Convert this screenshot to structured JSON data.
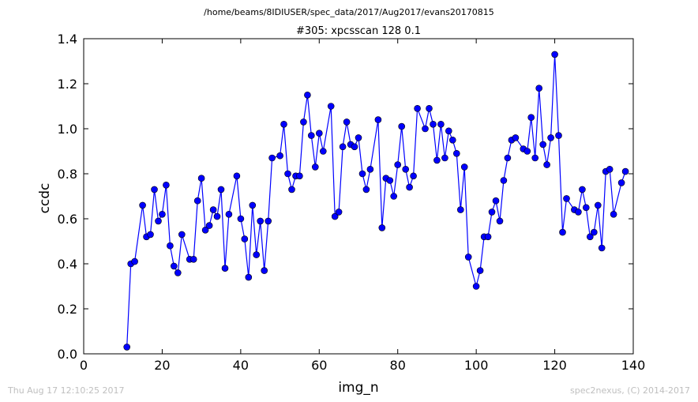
{
  "header": {
    "path": "/home/beams/8IDIUSER/spec_data/2017/Aug2017/evans20170815"
  },
  "footer": {
    "timestamp": "Thu Aug 17 12:10:25 2017",
    "credit": "spec2nexus, (C) 2014-2017"
  },
  "chart_data": {
    "type": "line",
    "title": "#305: xpcsscan 128 0.1",
    "xlabel": "img_n",
    "ylabel": "ccdc",
    "xlim": [
      0,
      140
    ],
    "ylim": [
      0.0,
      1.4
    ],
    "xticks": [
      "0",
      "20",
      "40",
      "60",
      "80",
      "100",
      "120",
      "140"
    ],
    "yticks": [
      "0.0",
      "0.2",
      "0.4",
      "0.6",
      "0.8",
      "1.0",
      "1.2",
      "1.4"
    ],
    "grid": false,
    "series": [
      {
        "color": "#0000ff",
        "marker": "circle",
        "x": [
          11,
          12,
          13,
          15,
          16,
          17,
          18,
          19,
          20,
          21,
          22,
          23,
          24,
          25,
          27,
          28,
          29,
          30,
          31,
          32,
          33,
          34,
          35,
          36,
          37,
          39,
          40,
          41,
          42,
          43,
          44,
          45,
          46,
          47,
          48,
          50,
          51,
          52,
          53,
          54,
          55,
          56,
          57,
          58,
          59,
          60,
          61,
          63,
          64,
          65,
          66,
          67,
          68,
          69,
          70,
          71,
          72,
          73,
          75,
          76,
          77,
          78,
          79,
          80,
          81,
          82,
          83,
          84,
          85,
          87,
          88,
          89,
          90,
          91,
          92,
          93,
          94,
          95,
          96,
          97,
          98,
          100,
          101,
          102,
          103,
          104,
          105,
          106,
          107,
          108,
          109,
          110,
          112,
          113,
          114,
          115,
          116,
          117,
          118,
          119,
          120,
          121,
          122,
          123,
          125,
          126,
          127,
          128,
          129,
          130,
          131,
          132,
          133,
          134,
          135,
          137,
          138
        ],
        "y": [
          0.03,
          0.4,
          0.41,
          0.66,
          0.52,
          0.53,
          0.73,
          0.59,
          0.62,
          0.75,
          0.48,
          0.39,
          0.36,
          0.53,
          0.42,
          0.42,
          0.68,
          0.78,
          0.55,
          0.57,
          0.64,
          0.61,
          0.73,
          0.38,
          0.62,
          0.79,
          0.6,
          0.51,
          0.34,
          0.66,
          0.44,
          0.59,
          0.37,
          0.59,
          0.87,
          0.88,
          1.02,
          0.8,
          0.73,
          0.79,
          0.79,
          1.03,
          1.15,
          0.97,
          0.83,
          0.98,
          0.9,
          1.1,
          0.61,
          0.63,
          0.92,
          1.03,
          0.93,
          0.92,
          0.96,
          0.8,
          0.73,
          0.82,
          1.04,
          0.56,
          0.78,
          0.77,
          0.7,
          0.84,
          1.01,
          0.82,
          0.74,
          0.79,
          1.09,
          1.0,
          1.09,
          1.02,
          0.86,
          1.02,
          0.87,
          0.99,
          0.95,
          0.89,
          0.64,
          0.83,
          0.43,
          0.3,
          0.37,
          0.52,
          0.52,
          0.63,
          0.68,
          0.59,
          0.77,
          0.87,
          0.95,
          0.96,
          0.91,
          0.9,
          1.05,
          0.87,
          1.18,
          0.93,
          0.84,
          0.96,
          1.33,
          0.97,
          0.54,
          0.69,
          0.64,
          0.63,
          0.73,
          0.65,
          0.52,
          0.54,
          0.66,
          0.47,
          0.81,
          0.82,
          0.62,
          0.76,
          0.81
        ]
      }
    ]
  }
}
